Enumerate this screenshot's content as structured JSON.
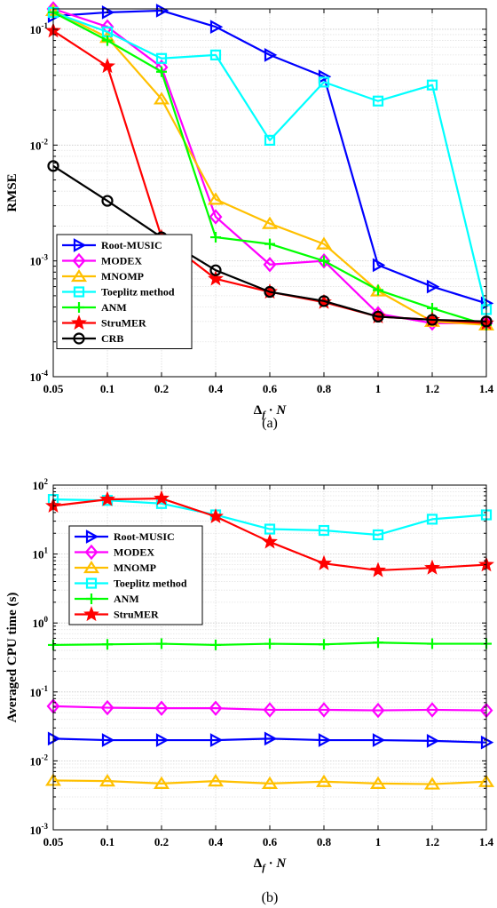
{
  "chart_data": [
    {
      "type": "line",
      "caption": "(a)",
      "xlabel_main": "Δ",
      "xlabel_sub": "f",
      "xlabel_rest": " · N",
      "ylabel": "RMSE",
      "yscale": "log",
      "ylim": [
        0.0001,
        0.15
      ],
      "grid": true,
      "legend_position": "bottom-left",
      "x_ticks": [
        "0.05",
        "0.1",
        "0.2",
        "0.4",
        "0.6",
        "0.8",
        "1",
        "1.2",
        "1.4"
      ],
      "y_ticks": [
        {
          "value": 0.1,
          "mant": "10",
          "exp": "-1"
        },
        {
          "value": 0.01,
          "mant": "10",
          "exp": "-2"
        },
        {
          "value": 0.001,
          "mant": "10",
          "exp": "-3"
        },
        {
          "value": 0.0001,
          "mant": "10",
          "exp": "-4"
        }
      ],
      "series": [
        {
          "name": "Root-MUSIC",
          "color": "#0000ff",
          "marker": "triangle-right",
          "values": [
            0.13,
            0.14,
            0.145,
            0.105,
            0.06,
            0.039,
            0.00092,
            0.0006,
            0.00043
          ]
        },
        {
          "name": "MODEX",
          "color": "#ff00ff",
          "marker": "diamond",
          "values": [
            0.15,
            0.105,
            0.047,
            0.0024,
            0.00093,
            0.001,
            0.00035,
            0.00029,
            0.00029
          ]
        },
        {
          "name": "MNOMP",
          "color": "#ffc000",
          "marker": "triangle-up",
          "values": [
            0.145,
            0.085,
            0.025,
            0.0034,
            0.0021,
            0.0014,
            0.00055,
            0.0003,
            0.00028
          ]
        },
        {
          "name": "Toeplitz method",
          "color": "#00ffff",
          "marker": "square",
          "values": [
            0.14,
            0.095,
            0.056,
            0.06,
            0.011,
            0.035,
            0.024,
            0.033,
            0.00038
          ]
        },
        {
          "name": "ANM",
          "color": "#00ff00",
          "marker": "plus",
          "values": [
            0.14,
            0.08,
            0.043,
            0.0016,
            0.0014,
            0.001,
            0.00056,
            0.00039,
            0.00028
          ]
        },
        {
          "name": "StruMER",
          "color": "#ff0000",
          "marker": "star",
          "values": [
            0.097,
            0.048,
            0.0016,
            0.0007,
            0.00054,
            0.00044,
            0.00033,
            0.00031,
            0.00029
          ]
        },
        {
          "name": "CRB",
          "color": "#000000",
          "marker": "circle",
          "values": [
            0.0066,
            0.0033,
            0.0016,
            0.00083,
            0.00054,
            0.00045,
            0.00033,
            0.00031,
            0.0003
          ]
        }
      ]
    },
    {
      "type": "line",
      "caption": "(b)",
      "xlabel_main": "Δ",
      "xlabel_sub": "f",
      "xlabel_rest": " · N",
      "ylabel": "Averaged CPU time (s)",
      "yscale": "log",
      "ylim": [
        0.001,
        100
      ],
      "grid": true,
      "legend_position": "top-left",
      "x_ticks": [
        "0.05",
        "0.1",
        "0.2",
        "0.4",
        "0.6",
        "0.8",
        "1",
        "1.2",
        "1.4"
      ],
      "y_ticks": [
        {
          "value": 100,
          "mant": "10",
          "exp": "2"
        },
        {
          "value": 10,
          "mant": "10",
          "exp": "1"
        },
        {
          "value": 1,
          "mant": "10",
          "exp": "0"
        },
        {
          "value": 0.1,
          "mant": "10",
          "exp": "-1"
        },
        {
          "value": 0.01,
          "mant": "10",
          "exp": "-2"
        },
        {
          "value": 0.001,
          "mant": "10",
          "exp": "-3"
        }
      ],
      "series": [
        {
          "name": "Root-MUSIC",
          "color": "#0000ff",
          "marker": "triangle-right",
          "values": [
            0.021,
            0.02,
            0.02,
            0.02,
            0.021,
            0.02,
            0.02,
            0.0195,
            0.0185
          ]
        },
        {
          "name": "MODEX",
          "color": "#ff00ff",
          "marker": "diamond",
          "values": [
            0.062,
            0.059,
            0.058,
            0.058,
            0.055,
            0.055,
            0.054,
            0.055,
            0.054
          ]
        },
        {
          "name": "MNOMP",
          "color": "#ffc000",
          "marker": "triangle-up",
          "values": [
            0.0052,
            0.0051,
            0.0047,
            0.0051,
            0.0047,
            0.005,
            0.0047,
            0.0046,
            0.005
          ]
        },
        {
          "name": "Toeplitz method",
          "color": "#00ffff",
          "marker": "square",
          "values": [
            62,
            60,
            54,
            37,
            23,
            22,
            19,
            32,
            37
          ]
        },
        {
          "name": "ANM",
          "color": "#00ff00",
          "marker": "plus",
          "values": [
            0.48,
            0.49,
            0.5,
            0.48,
            0.5,
            0.49,
            0.52,
            0.5,
            0.5
          ]
        },
        {
          "name": "StruMER",
          "color": "#ff0000",
          "marker": "star",
          "values": [
            50,
            62,
            64,
            35,
            15,
            7.3,
            5.8,
            6.3,
            7
          ]
        }
      ]
    }
  ]
}
